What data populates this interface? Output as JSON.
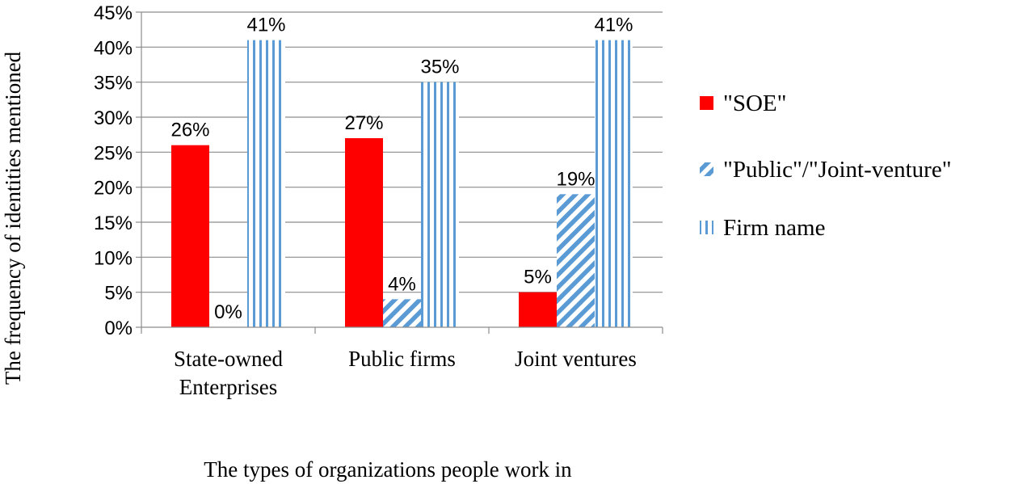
{
  "chart_data": {
    "type": "bar",
    "title": "",
    "xlabel": "The types of organizations people work in",
    "ylabel": "The frequency of identities mentioned",
    "categories": [
      [
        "State-owned",
        "Enterprises"
      ],
      [
        "Public firms"
      ],
      [
        "Joint ventures"
      ]
    ],
    "series": [
      {
        "name": "\"SOE\"",
        "values": [
          26,
          27,
          5
        ],
        "labels": [
          "26%",
          "27%",
          "5%"
        ],
        "color": "#ff0000",
        "pattern": "solid"
      },
      {
        "name": "\"Public\"/\"Joint-venture\"",
        "values": [
          0,
          4,
          19
        ],
        "labels": [
          "0%",
          "4%",
          "19%"
        ],
        "color": "#5b9bd5",
        "pattern": "diagonal-stripes"
      },
      {
        "name": "Firm name",
        "values": [
          41,
          35,
          41
        ],
        "labels": [
          "41%",
          "35%",
          "41%"
        ],
        "color": "#5b9bd5",
        "pattern": "vertical-stripes"
      }
    ],
    "ylim": [
      0,
      45
    ],
    "yticks": [
      0,
      5,
      10,
      15,
      20,
      25,
      30,
      35,
      40,
      45
    ],
    "ytick_labels": [
      "0%",
      "5%",
      "10%",
      "15%",
      "20%",
      "25%",
      "30%",
      "35%",
      "40%",
      "45%"
    ],
    "grid": true,
    "legend_position": "right"
  }
}
